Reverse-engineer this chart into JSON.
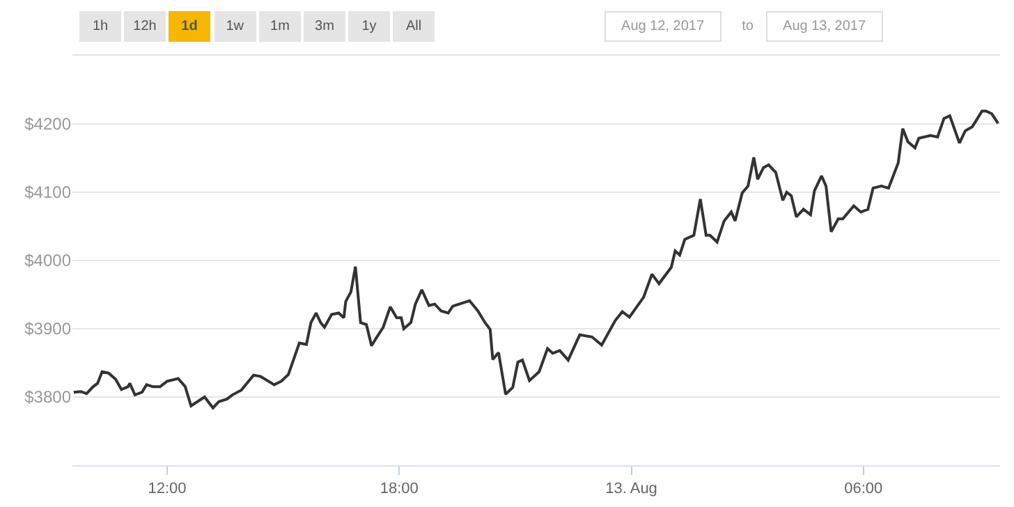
{
  "chart_data": {
    "type": "line",
    "x": [
      "2017-08-12T09:35",
      "2017-08-12T09:46",
      "2017-08-12T09:55",
      "2017-08-12T10:05",
      "2017-08-12T10:12",
      "2017-08-12T10:19",
      "2017-08-12T10:29",
      "2017-08-12T10:40",
      "2017-08-12T10:49",
      "2017-08-12T10:59",
      "2017-08-12T11:02",
      "2017-08-12T11:10",
      "2017-08-12T11:21",
      "2017-08-12T11:28",
      "2017-08-12T11:38",
      "2017-08-12T11:49",
      "2017-08-12T12:00",
      "2017-08-12T12:17",
      "2017-08-12T12:28",
      "2017-08-12T12:37",
      "2017-08-12T12:58",
      "2017-08-12T13:11",
      "2017-08-12T13:20",
      "2017-08-12T13:33",
      "2017-08-12T13:41",
      "2017-08-12T13:55",
      "2017-08-12T14:14",
      "2017-08-12T14:25",
      "2017-08-12T14:46",
      "2017-08-12T14:57",
      "2017-08-12T15:08",
      "2017-08-12T15:25",
      "2017-08-12T15:36",
      "2017-08-12T15:43",
      "2017-08-12T15:51",
      "2017-08-12T15:58",
      "2017-08-12T16:04",
      "2017-08-12T16:15",
      "2017-08-12T16:26",
      "2017-08-12T16:34",
      "2017-08-12T16:37",
      "2017-08-12T16:45",
      "2017-08-12T16:52",
      "2017-08-12T17:00",
      "2017-08-12T17:09",
      "2017-08-12T17:17",
      "2017-08-12T17:24",
      "2017-08-12T17:35",
      "2017-08-12T17:46",
      "2017-08-12T17:56",
      "2017-08-12T18:03",
      "2017-08-12T18:07",
      "2017-08-12T18:18",
      "2017-08-12T18:25",
      "2017-08-12T18:35",
      "2017-08-12T18:46",
      "2017-08-12T18:55",
      "2017-08-12T19:05",
      "2017-08-12T19:16",
      "2017-08-12T19:23",
      "2017-08-12T19:49",
      "2017-08-12T20:02",
      "2017-08-12T20:13",
      "2017-08-12T20:21",
      "2017-08-12T20:25",
      "2017-08-12T20:34",
      "2017-08-12T20:45",
      "2017-08-12T20:56",
      "2017-08-12T21:04",
      "2017-08-12T21:11",
      "2017-08-12T21:22",
      "2017-08-12T21:37",
      "2017-08-12T21:50",
      "2017-08-12T21:58",
      "2017-08-12T22:09",
      "2017-08-12T22:22",
      "2017-08-12T22:40",
      "2017-08-12T22:59",
      "2017-08-12T23:14",
      "2017-08-12T23:35",
      "2017-08-12T23:46",
      "2017-08-12T23:57",
      "2017-08-13T00:19",
      "2017-08-13T00:32",
      "2017-08-13T00:43",
      "2017-08-13T01:02",
      "2017-08-13T01:08",
      "2017-08-13T01:15",
      "2017-08-13T01:23",
      "2017-08-13T01:37",
      "2017-08-13T01:47",
      "2017-08-13T01:56",
      "2017-08-13T02:02",
      "2017-08-13T02:13",
      "2017-08-13T02:24",
      "2017-08-13T02:35",
      "2017-08-13T02:41",
      "2017-08-13T02:52",
      "2017-08-13T03:01",
      "2017-08-13T03:10",
      "2017-08-13T03:16",
      "2017-08-13T03:25",
      "2017-08-13T03:33",
      "2017-08-13T03:44",
      "2017-08-13T03:55",
      "2017-08-13T04:01",
      "2017-08-13T04:08",
      "2017-08-13T04:16",
      "2017-08-13T04:27",
      "2017-08-13T04:38",
      "2017-08-13T04:44",
      "2017-08-13T04:55",
      "2017-08-13T05:02",
      "2017-08-13T05:10",
      "2017-08-13T05:21",
      "2017-08-13T05:28",
      "2017-08-13T05:45",
      "2017-08-13T05:56",
      "2017-08-13T06:07",
      "2017-08-13T06:15",
      "2017-08-13T06:28",
      "2017-08-13T06:39",
      "2017-08-13T06:54",
      "2017-08-13T07:01",
      "2017-08-13T07:09",
      "2017-08-13T07:20",
      "2017-08-13T07:26",
      "2017-08-13T07:44",
      "2017-08-13T07:55",
      "2017-08-13T08:05",
      "2017-08-13T08:14",
      "2017-08-13T08:29",
      "2017-08-13T08:38",
      "2017-08-13T08:49",
      "2017-08-13T09:04",
      "2017-08-13T09:10",
      "2017-08-13T09:19",
      "2017-08-13T09:29"
    ],
    "series": [
      {
        "color": "#333333",
        "values": [
          3807,
          3808,
          3805,
          3815,
          3820,
          3837,
          3835,
          3826,
          3811,
          3815,
          3820,
          3803,
          3807,
          3818,
          3815,
          3815,
          3823,
          3827,
          3815,
          3787,
          3800,
          3784,
          3793,
          3797,
          3803,
          3810,
          3832,
          3830,
          3818,
          3823,
          3833,
          3879,
          3877,
          3909,
          3923,
          3909,
          3902,
          3921,
          3923,
          3916,
          3940,
          3954,
          3991,
          3909,
          3906,
          3875,
          3886,
          3902,
          3932,
          3916,
          3916,
          3900,
          3909,
          3936,
          3957,
          3934,
          3936,
          3926,
          3923,
          3933,
          3941,
          3926,
          3909,
          3899,
          3855,
          3865,
          3804,
          3814,
          3851,
          3854,
          3824,
          3837,
          3871,
          3864,
          3868,
          3854,
          3891,
          3888,
          3876,
          3912,
          3925,
          3917,
          3946,
          3980,
          3966,
          3990,
          4014,
          4008,
          4031,
          4037,
          4090,
          4037,
          4037,
          4027,
          4058,
          4071,
          4058,
          4099,
          4109,
          4151,
          4119,
          4136,
          4140,
          4129,
          4088,
          4100,
          4095,
          4064,
          4075,
          4067,
          4102,
          4124,
          4109,
          4042,
          4061,
          4061,
          4080,
          4071,
          4075,
          4106,
          4109,
          4106,
          4143,
          4193,
          4174,
          4165,
          4179,
          4183,
          4181,
          4208,
          4212,
          4172,
          4190,
          4196,
          4219,
          4219,
          4215,
          4201
        ]
      }
    ],
    "xlim": [
      "2017-08-12T09:33",
      "2017-08-13T09:32"
    ],
    "xticks": [
      {
        "value": "2017-08-12T12:00",
        "label": "12:00"
      },
      {
        "value": "2017-08-12T18:00",
        "label": "18:00"
      },
      {
        "value": "2017-08-13T00:00",
        "label": "13. Aug"
      },
      {
        "value": "2017-08-13T06:00",
        "label": "06:00"
      }
    ],
    "ylim": [
      3700,
      4300
    ],
    "yticks": [
      {
        "value": 3800,
        "label": "$3800"
      },
      {
        "value": 3900,
        "label": "$3900"
      },
      {
        "value": 4000,
        "label": "$4000"
      },
      {
        "value": 4100,
        "label": "$4100"
      },
      {
        "value": 4200,
        "label": "$4200"
      }
    ],
    "grid": "y",
    "marker": "none",
    "line_style": "solid",
    "annotations": [
      "1h",
      "12h",
      "1d",
      "1w",
      "1m",
      "3m",
      "1y",
      "All",
      "Aug 12, 2017",
      "to",
      "Aug 13, 2017"
    ]
  }
}
